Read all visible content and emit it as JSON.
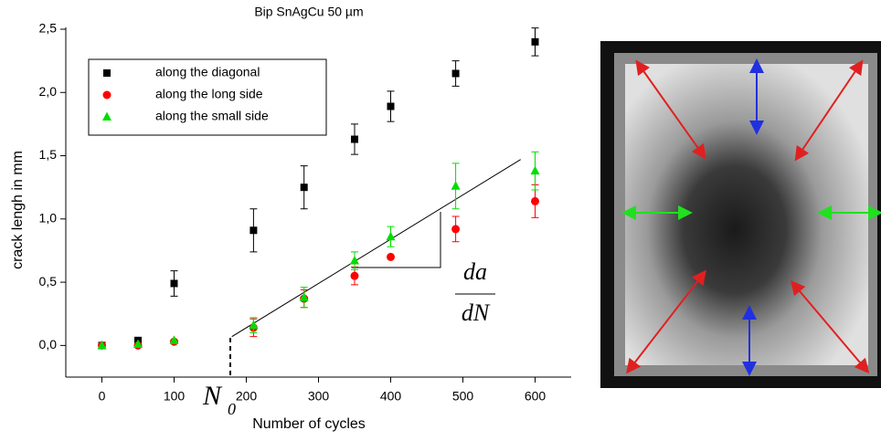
{
  "chart_data": {
    "type": "scatter",
    "title": "Bip SnAgCu 50 µm",
    "x_label": "Number of cycles",
    "y_label": "crack lengh in mm",
    "x": [
      0,
      50,
      100,
      210,
      280,
      350,
      400,
      490,
      600
    ],
    "series": [
      {
        "name": "along the diagonal",
        "color": "#000000",
        "marker": "square",
        "values": [
          0,
          0.04,
          0.49,
          0.91,
          1.25,
          1.63,
          1.89,
          2.15,
          2.4
        ],
        "errors": [
          null,
          null,
          0.1,
          0.17,
          0.17,
          0.12,
          0.12,
          0.1,
          0.11
        ]
      },
      {
        "name": "along the long side",
        "color": "#ff0000",
        "marker": "circle",
        "values": [
          0,
          0,
          0.03,
          0.14,
          0.37,
          0.55,
          0.7,
          0.92,
          1.14
        ],
        "errors": [
          null,
          null,
          null,
          0.07,
          0.07,
          0.07,
          null,
          0.1,
          0.13
        ]
      },
      {
        "name": "along the small side",
        "color": "#00dd00",
        "marker": "triangle",
        "values": [
          0,
          0.01,
          0.04,
          0.16,
          0.38,
          0.67,
          0.86,
          1.26,
          1.38
        ],
        "errors": [
          null,
          null,
          null,
          0.06,
          0.08,
          0.07,
          0.08,
          0.18,
          0.15
        ]
      }
    ],
    "fit_line": {
      "x": [
        180,
        580
      ],
      "y": [
        0.07,
        1.47
      ]
    },
    "annotations": {
      "n0": "N",
      "n0_sub": "0",
      "da": "da",
      "dN": "dN"
    },
    "xlim": [
      -50,
      650
    ],
    "xticks": [
      0,
      100,
      200,
      300,
      400,
      500,
      600
    ],
    "ylim": [
      -0.25,
      2.5
    ],
    "yticks": [
      {
        "value": 0,
        "label": "0,0"
      },
      {
        "value": 0.5,
        "label": "0,5"
      },
      {
        "value": 1,
        "label": "1,0"
      },
      {
        "value": 1.5,
        "label": "1,5"
      },
      {
        "value": 2,
        "label": "2,0"
      },
      {
        "value": 2.5,
        "label": "2,5"
      }
    ],
    "legend": "upper-left",
    "grid": false
  }
}
